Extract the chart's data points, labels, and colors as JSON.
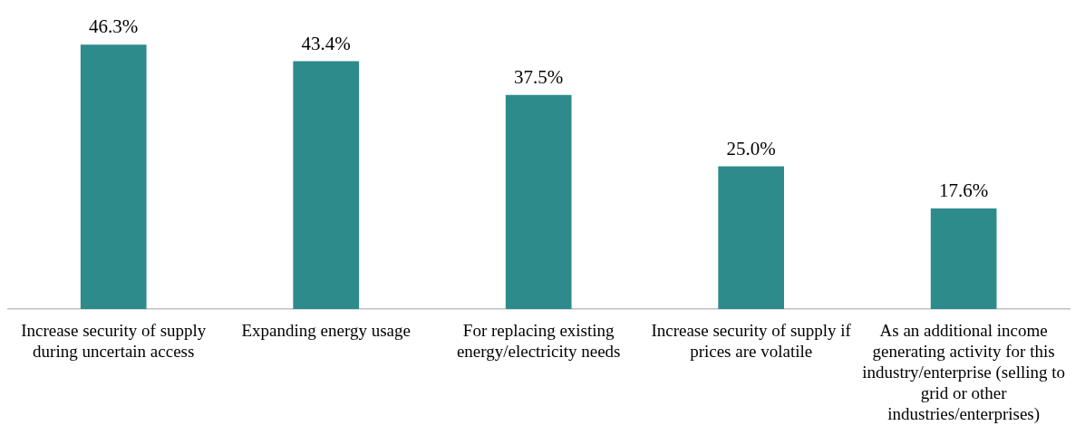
{
  "chart_data": {
    "type": "bar",
    "categories": [
      "Increase security of supply during uncertain access",
      "Expanding energy usage",
      "For replacing existing energy/electricity needs",
      "Increase security of supply if prices are volatile",
      "As an additional income generating activity for this industry/enterprise (selling to grid or other industries/enterprises)"
    ],
    "values": [
      46.3,
      43.4,
      37.5,
      25.0,
      17.6
    ],
    "value_labels": [
      "46.3%",
      "43.4%",
      "37.5%",
      "25.0%",
      "17.6%"
    ],
    "color": "#2e8b8b",
    "grid": false,
    "legend": false
  }
}
